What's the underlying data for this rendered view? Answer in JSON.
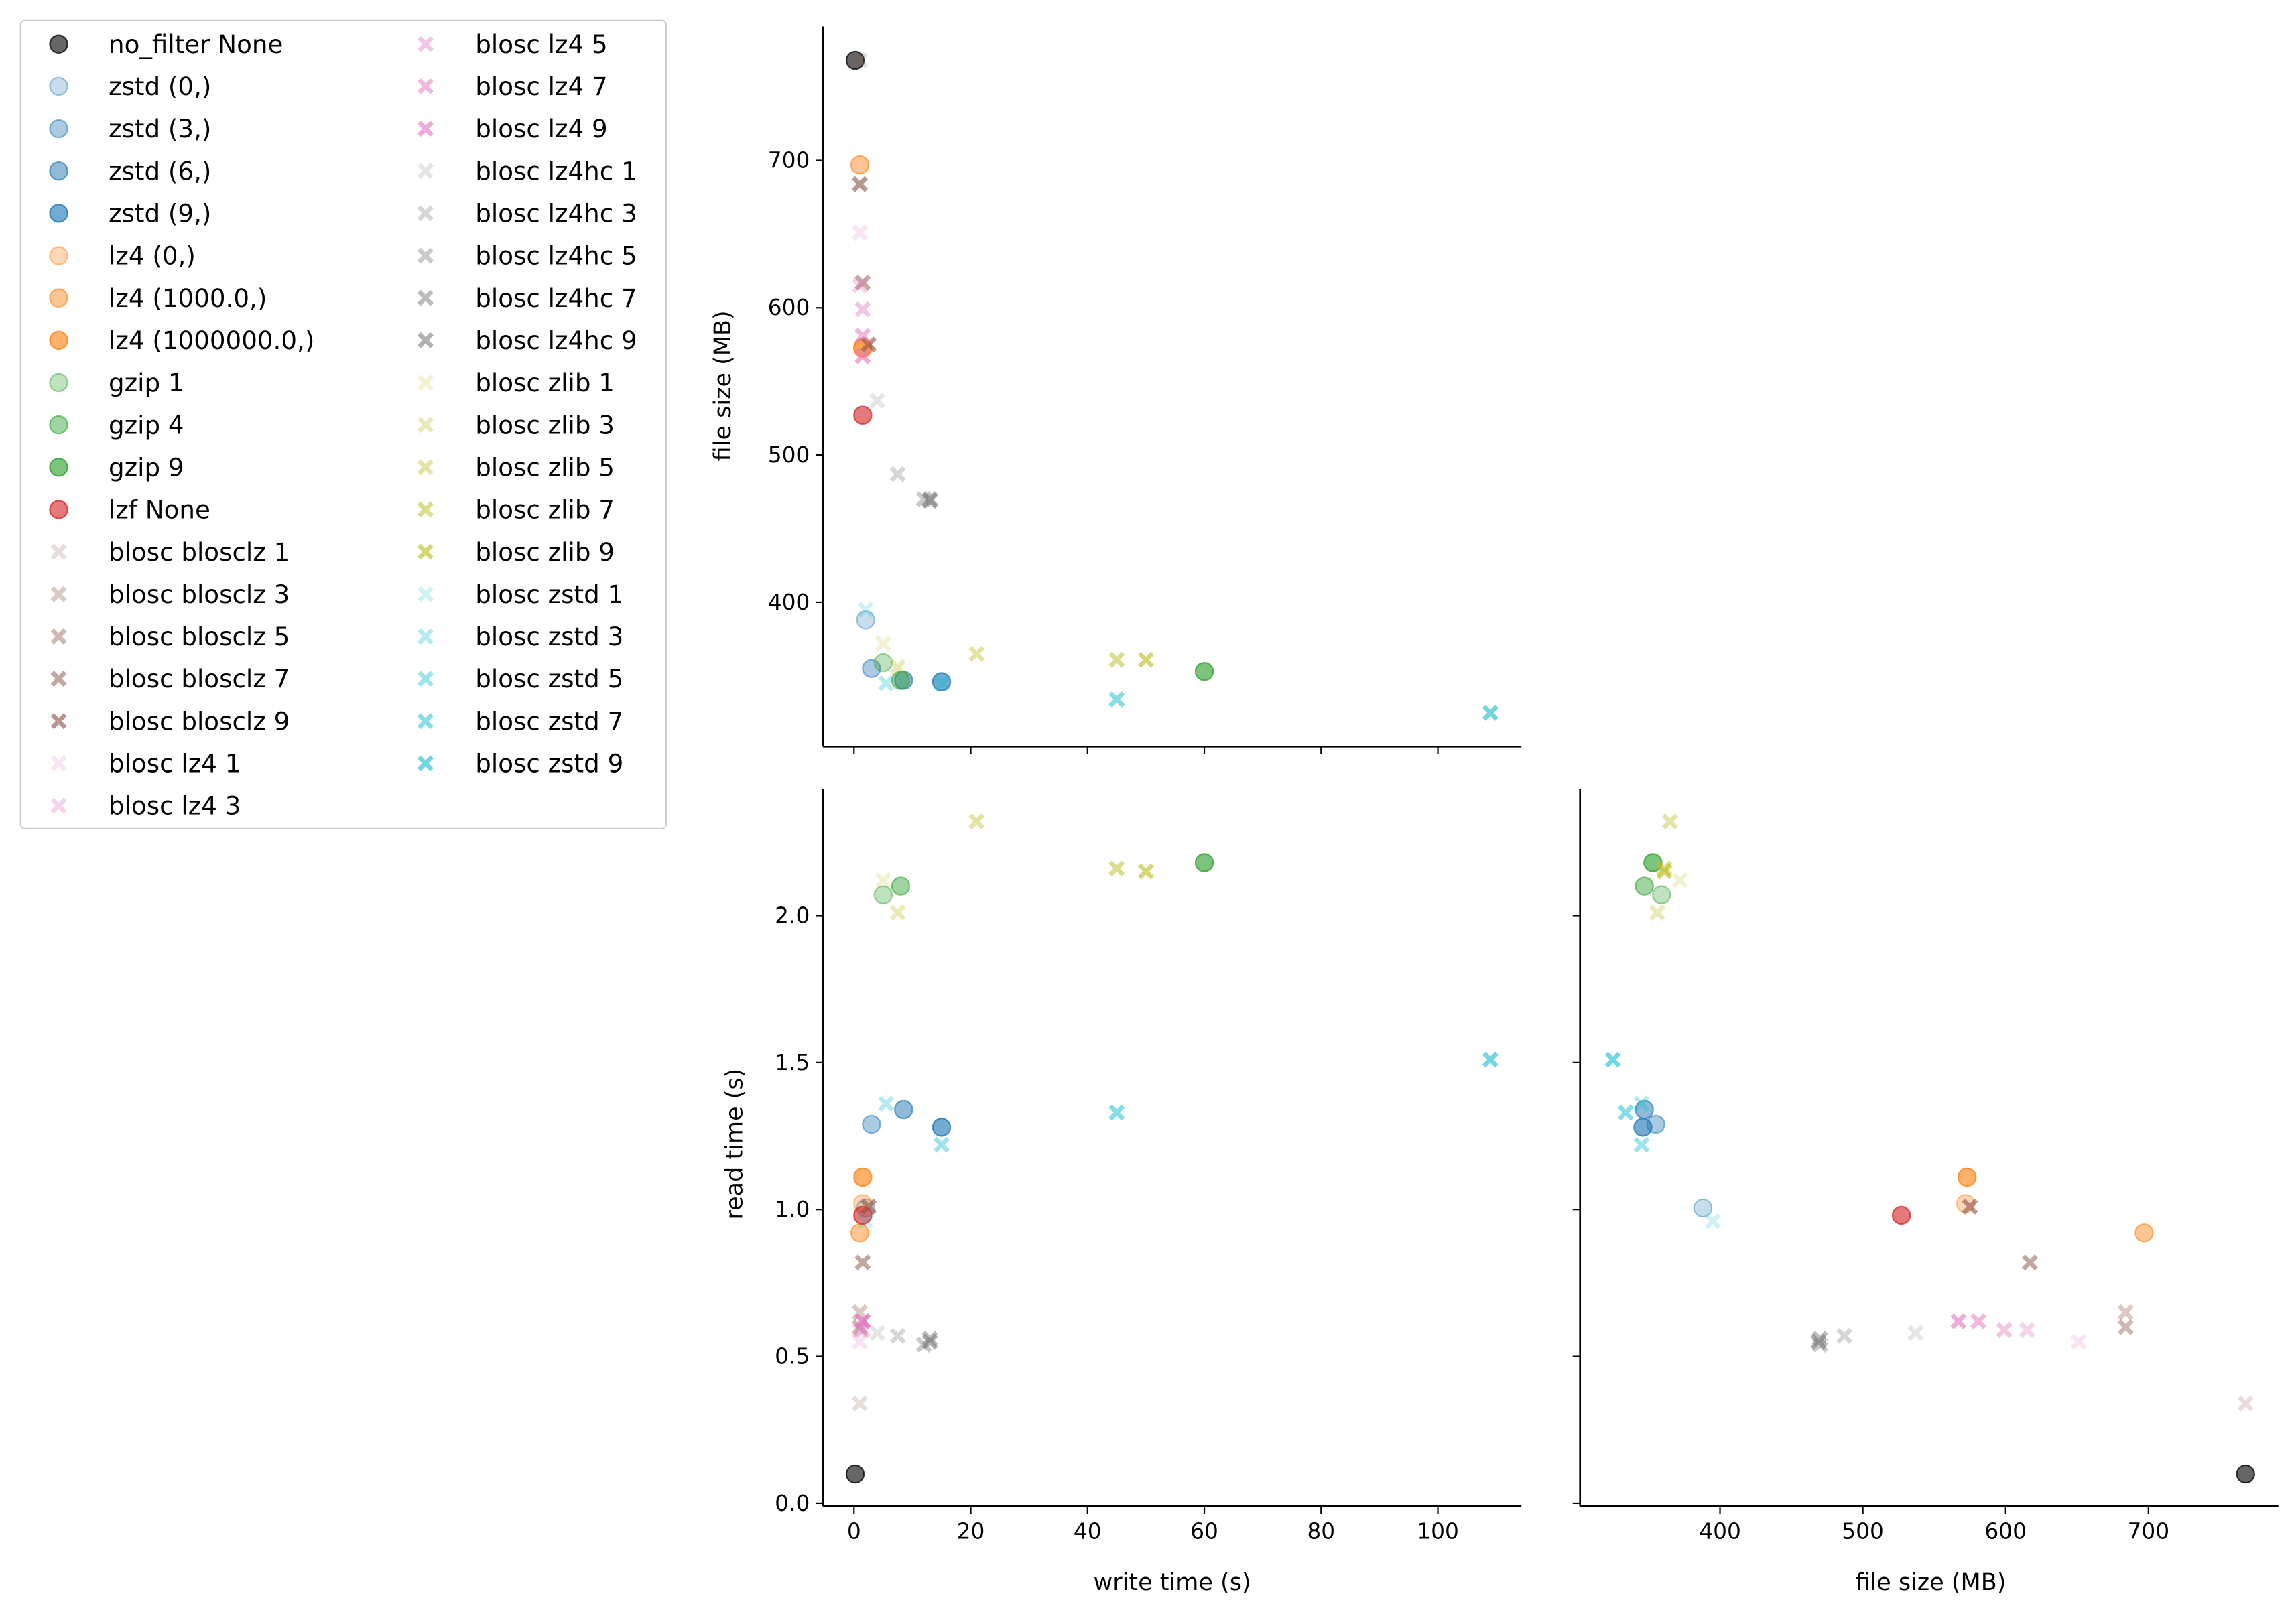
{
  "chart_data": {
    "type": "scatter",
    "layout": "pairplot (lower triangle)",
    "variables": [
      "write time (s)",
      "file size (MB)",
      "read time (s)"
    ],
    "axes": {
      "write_time": {
        "label": "write time (s)",
        "lim": [
          -5.3,
          114.3
        ],
        "ticks": [
          0,
          20,
          40,
          60,
          80,
          100
        ]
      },
      "file_size": {
        "label": "file size (MB)",
        "lim": [
          302,
          791
        ],
        "ticks": [
          400,
          500,
          600,
          700
        ]
      },
      "read_time": {
        "label": "read time (s)",
        "lim": [
          -0.01,
          2.43
        ],
        "ticks": [
          0.0,
          0.5,
          1.0,
          1.5,
          2.0
        ],
        "tick_labels": [
          "0.0",
          "0.5",
          "1.0",
          "1.5",
          "2.0"
        ]
      }
    },
    "panels": [
      {
        "x": "write_time",
        "y": "file_size"
      },
      {
        "x": "write_time",
        "y": "read_time"
      },
      {
        "x": "file_size",
        "y": "read_time"
      }
    ],
    "grid": false,
    "legend_position": "top-left, outside panels",
    "series": [
      {
        "name": "no_filter None",
        "color": "#000000",
        "alpha": 0.6,
        "marker": "o",
        "write_time": 0.2,
        "file_size": 768,
        "read_time": 0.1
      },
      {
        "name": "zstd (0,)",
        "color": "#1f77b4",
        "alpha": 0.25,
        "marker": "o",
        "write_time": 2,
        "file_size": 388,
        "read_time": 1.005
      },
      {
        "name": "zstd (3,)",
        "color": "#1f77b4",
        "alpha": 0.38,
        "marker": "o",
        "write_time": 3,
        "file_size": 355,
        "read_time": 1.29
      },
      {
        "name": "zstd (6,)",
        "color": "#1f77b4",
        "alpha": 0.5,
        "marker": "o",
        "write_time": 8.5,
        "file_size": 347,
        "read_time": 1.34
      },
      {
        "name": "zstd (9,)",
        "color": "#1f77b4",
        "alpha": 0.62,
        "marker": "o",
        "write_time": 15,
        "file_size": 346,
        "read_time": 1.28
      },
      {
        "name": "lz4 (0,)",
        "color": "#ff7f0e",
        "alpha": 0.3,
        "marker": "o",
        "write_time": 1.5,
        "file_size": 572,
        "read_time": 1.02
      },
      {
        "name": "lz4 (1000.0,)",
        "color": "#ff7f0e",
        "alpha": 0.45,
        "marker": "o",
        "write_time": 1,
        "file_size": 697,
        "read_time": 0.92
      },
      {
        "name": "lz4 (1000000.0,)",
        "color": "#ff7f0e",
        "alpha": 0.62,
        "marker": "o",
        "write_time": 1.5,
        "file_size": 573,
        "read_time": 1.11
      },
      {
        "name": "gzip 1",
        "color": "#2ca02c",
        "alpha": 0.3,
        "marker": "o",
        "write_time": 5,
        "file_size": 359,
        "read_time": 2.07
      },
      {
        "name": "gzip 4",
        "color": "#2ca02c",
        "alpha": 0.45,
        "marker": "o",
        "write_time": 8,
        "file_size": 347,
        "read_time": 2.1
      },
      {
        "name": "gzip 9",
        "color": "#2ca02c",
        "alpha": 0.62,
        "marker": "o",
        "write_time": 60,
        "file_size": 353,
        "read_time": 2.18
      },
      {
        "name": "lzf None",
        "color": "#d62728",
        "alpha": 0.62,
        "marker": "o",
        "write_time": 1.5,
        "file_size": 527,
        "read_time": 0.98
      },
      {
        "name": "blosc blosclz 1",
        "color": "#8c564b",
        "alpha": 0.2,
        "marker": "X",
        "write_time": 1,
        "file_size": 768,
        "read_time": 0.34
      },
      {
        "name": "blosc blosclz 3",
        "color": "#8c564b",
        "alpha": 0.32,
        "marker": "X",
        "write_time": 1,
        "file_size": 684,
        "read_time": 0.65
      },
      {
        "name": "blosc blosclz 5",
        "color": "#8c564b",
        "alpha": 0.42,
        "marker": "X",
        "write_time": 1,
        "file_size": 684,
        "read_time": 0.6
      },
      {
        "name": "blosc blosclz 7",
        "color": "#8c564b",
        "alpha": 0.52,
        "marker": "X",
        "write_time": 1.5,
        "file_size": 617,
        "read_time": 0.82
      },
      {
        "name": "blosc blosclz 9",
        "color": "#8c564b",
        "alpha": 0.62,
        "marker": "X",
        "write_time": 2.5,
        "file_size": 575,
        "read_time": 1.01
      },
      {
        "name": "blosc lz4 1",
        "color": "#e377c2",
        "alpha": 0.2,
        "marker": "X",
        "write_time": 1,
        "file_size": 651,
        "read_time": 0.55
      },
      {
        "name": "blosc lz4 3",
        "color": "#e377c2",
        "alpha": 0.32,
        "marker": "X",
        "write_time": 1,
        "file_size": 615,
        "read_time": 0.59
      },
      {
        "name": "blosc lz4 5",
        "color": "#e377c2",
        "alpha": 0.42,
        "marker": "X",
        "write_time": 1.5,
        "file_size": 599,
        "read_time": 0.59
      },
      {
        "name": "blosc lz4 7",
        "color": "#e377c2",
        "alpha": 0.52,
        "marker": "X",
        "write_time": 1.5,
        "file_size": 581,
        "read_time": 0.62
      },
      {
        "name": "blosc lz4 9",
        "color": "#e377c2",
        "alpha": 0.62,
        "marker": "X",
        "write_time": 1.5,
        "file_size": 567,
        "read_time": 0.62
      },
      {
        "name": "blosc lz4hc 1",
        "color": "#7f7f7f",
        "alpha": 0.2,
        "marker": "X",
        "write_time": 4,
        "file_size": 537,
        "read_time": 0.58
      },
      {
        "name": "blosc lz4hc 3",
        "color": "#7f7f7f",
        "alpha": 0.32,
        "marker": "X",
        "write_time": 7.5,
        "file_size": 487,
        "read_time": 0.57
      },
      {
        "name": "blosc lz4hc 5",
        "color": "#7f7f7f",
        "alpha": 0.42,
        "marker": "X",
        "write_time": 12,
        "file_size": 470,
        "read_time": 0.54
      },
      {
        "name": "blosc lz4hc 7",
        "color": "#7f7f7f",
        "alpha": 0.52,
        "marker": "X",
        "write_time": 13,
        "file_size": 470,
        "read_time": 0.56
      },
      {
        "name": "blosc lz4hc 9",
        "color": "#7f7f7f",
        "alpha": 0.62,
        "marker": "X",
        "write_time": 13,
        "file_size": 469,
        "read_time": 0.55
      },
      {
        "name": "blosc zlib 1",
        "color": "#bcbd22",
        "alpha": 0.2,
        "marker": "X",
        "write_time": 5,
        "file_size": 372,
        "read_time": 2.12
      },
      {
        "name": "blosc zlib 3",
        "color": "#bcbd22",
        "alpha": 0.32,
        "marker": "X",
        "write_time": 7.5,
        "file_size": 356,
        "read_time": 2.01
      },
      {
        "name": "blosc zlib 5",
        "color": "#bcbd22",
        "alpha": 0.42,
        "marker": "X",
        "write_time": 21,
        "file_size": 365,
        "read_time": 2.32
      },
      {
        "name": "blosc zlib 7",
        "color": "#bcbd22",
        "alpha": 0.52,
        "marker": "X",
        "write_time": 45,
        "file_size": 361,
        "read_time": 2.16
      },
      {
        "name": "blosc zlib 9",
        "color": "#bcbd22",
        "alpha": 0.62,
        "marker": "X",
        "write_time": 50,
        "file_size": 361,
        "read_time": 2.15
      },
      {
        "name": "blosc zstd 1",
        "color": "#17becf",
        "alpha": 0.2,
        "marker": "X",
        "write_time": 2,
        "file_size": 395,
        "read_time": 0.96
      },
      {
        "name": "blosc zstd 3",
        "color": "#17becf",
        "alpha": 0.32,
        "marker": "X",
        "write_time": 5.5,
        "file_size": 345,
        "read_time": 1.36
      },
      {
        "name": "blosc zstd 5",
        "color": "#17becf",
        "alpha": 0.42,
        "marker": "X",
        "write_time": 15,
        "file_size": 345,
        "read_time": 1.22
      },
      {
        "name": "blosc zstd 7",
        "color": "#17becf",
        "alpha": 0.52,
        "marker": "X",
        "write_time": 45,
        "file_size": 334,
        "read_time": 1.33
      },
      {
        "name": "blosc zstd 9",
        "color": "#17becf",
        "alpha": 0.62,
        "marker": "X",
        "write_time": 109,
        "file_size": 325,
        "read_time": 1.51
      }
    ]
  }
}
